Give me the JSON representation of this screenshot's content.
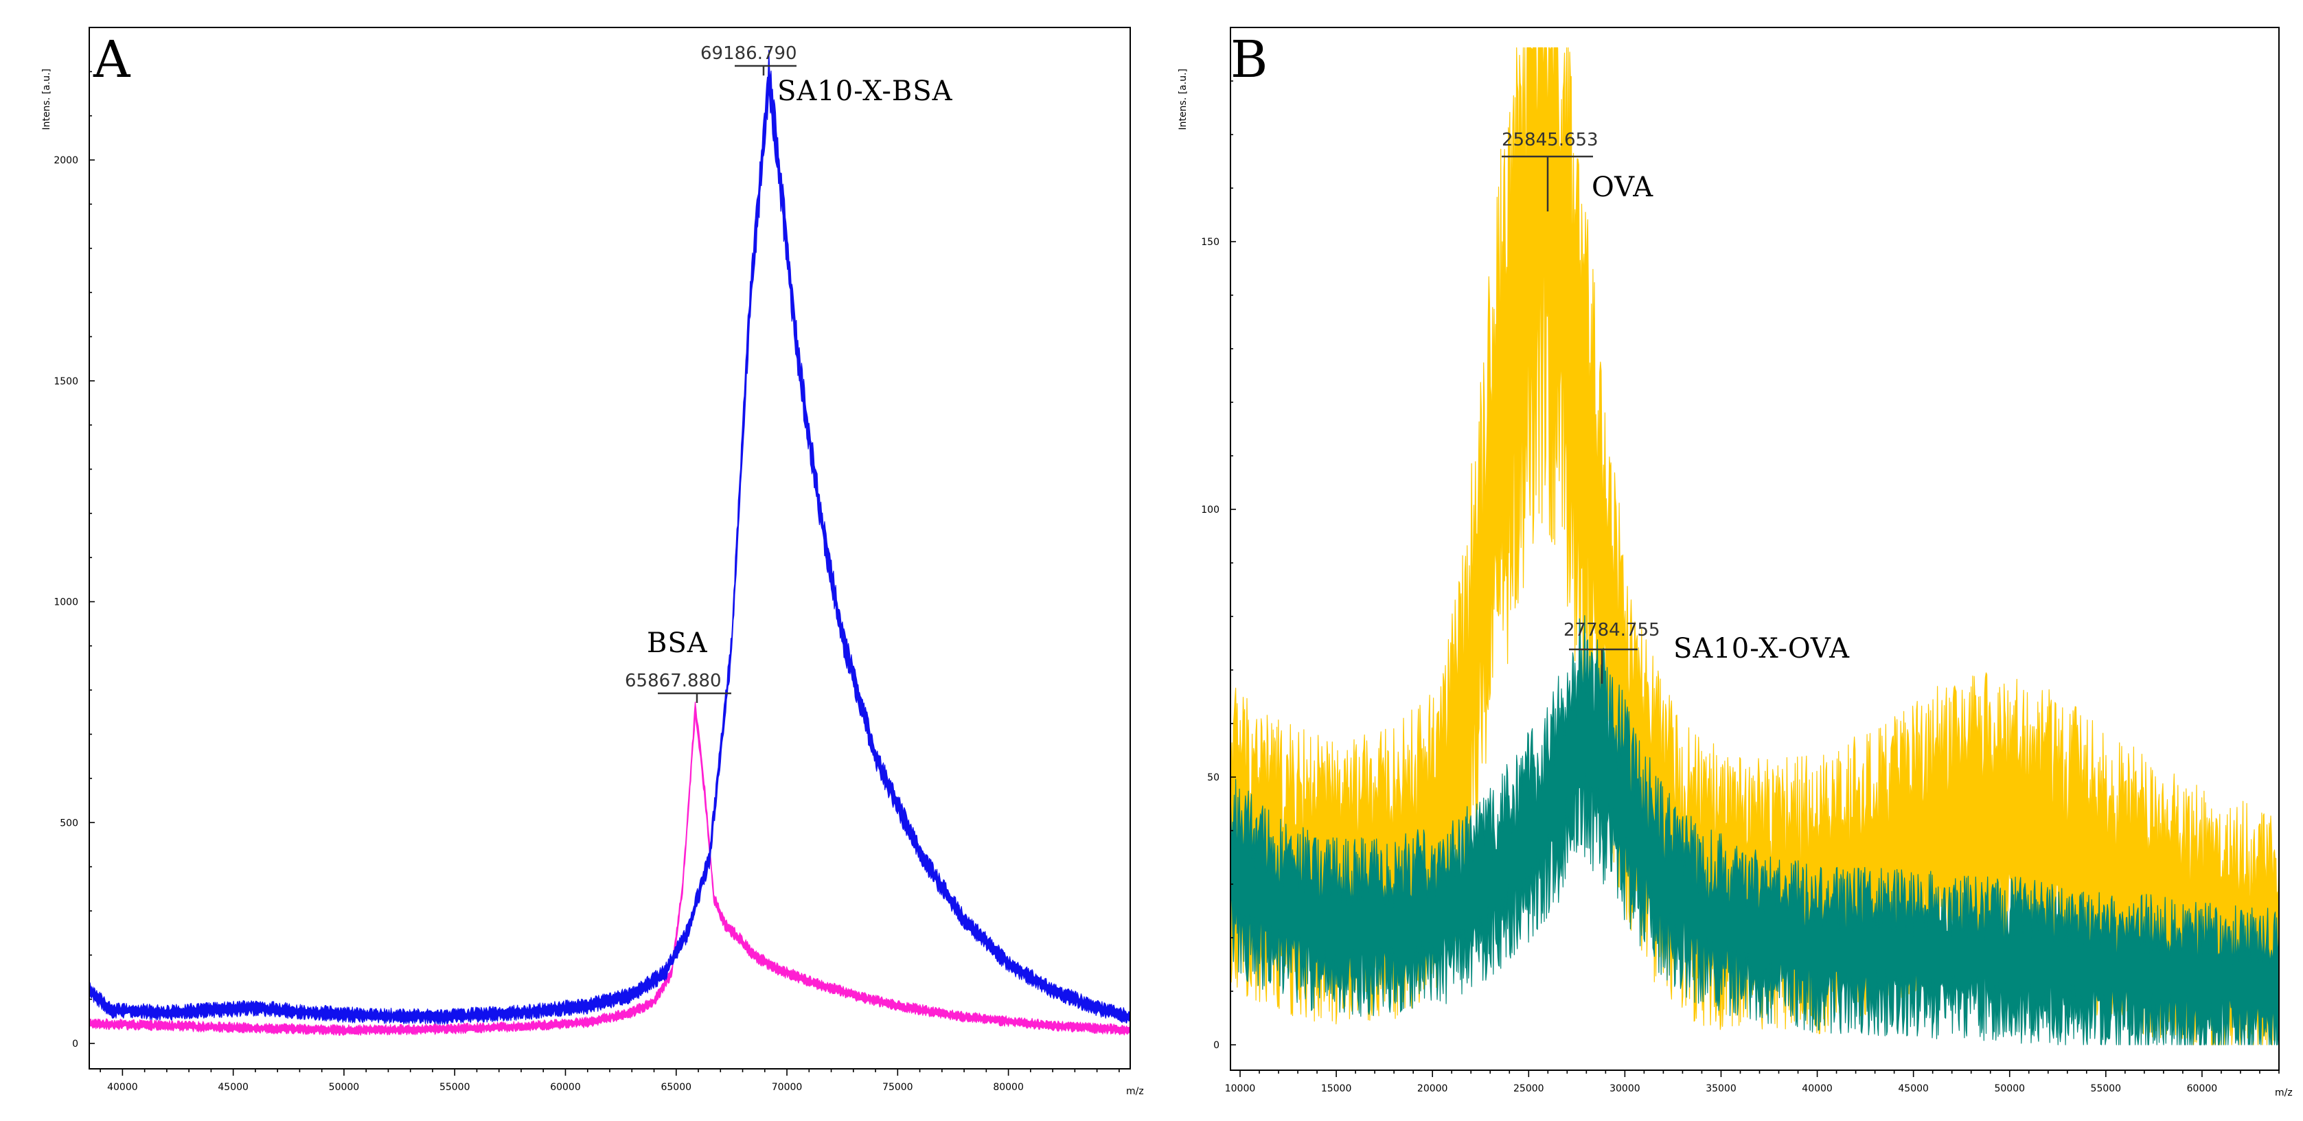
{
  "chart_data": [
    {
      "panel": "A",
      "type": "line",
      "xlabel": "m/z",
      "ylabel": "Intens. [a.u.]",
      "xlim": [
        38500,
        85500
      ],
      "ylim": [
        0,
        2300
      ],
      "xticks": [
        40000,
        45000,
        50000,
        55000,
        60000,
        65000,
        70000,
        75000,
        80000
      ],
      "yticks": [
        0,
        500,
        1000,
        1500,
        2000
      ],
      "series": [
        {
          "name": "BSA",
          "color": "#ff1fd2",
          "noise": 14,
          "points": [
            [
              38500,
              45
            ],
            [
              42000,
              40
            ],
            [
              46000,
              35
            ],
            [
              50000,
              30
            ],
            [
              54000,
              32
            ],
            [
              58000,
              38
            ],
            [
              61000,
              48
            ],
            [
              63000,
              70
            ],
            [
              64000,
              95
            ],
            [
              64800,
              160
            ],
            [
              65300,
              360
            ],
            [
              65868,
              760
            ],
            [
              66300,
              560
            ],
            [
              66700,
              330
            ],
            [
              67200,
              270
            ],
            [
              67800,
              240
            ],
            [
              68500,
              200
            ],
            [
              69500,
              170
            ],
            [
              71000,
              140
            ],
            [
              73000,
              110
            ],
            [
              75000,
              85
            ],
            [
              78000,
              60
            ],
            [
              82000,
              40
            ],
            [
              85500,
              30
            ]
          ]
        },
        {
          "name": "SA10-X-BSA",
          "color": "#1010ee",
          "noise": 20,
          "points": [
            [
              38500,
              120
            ],
            [
              39500,
              75
            ],
            [
              42000,
              70
            ],
            [
              46000,
              80
            ],
            [
              50000,
              65
            ],
            [
              54000,
              60
            ],
            [
              58000,
              70
            ],
            [
              61000,
              85
            ],
            [
              63000,
              110
            ],
            [
              64500,
              160
            ],
            [
              65500,
              250
            ],
            [
              66500,
              420
            ],
            [
              67500,
              900
            ],
            [
              68300,
              1650
            ],
            [
              69187,
              2190
            ],
            [
              69700,
              1950
            ],
            [
              70500,
              1550
            ],
            [
              71500,
              1200
            ],
            [
              72500,
              920
            ],
            [
              74000,
              650
            ],
            [
              76000,
              430
            ],
            [
              78000,
              280
            ],
            [
              80000,
              180
            ],
            [
              82000,
              120
            ],
            [
              84000,
              80
            ],
            [
              85500,
              60
            ]
          ]
        }
      ],
      "annotations": [
        {
          "text": "SA10-X-BSA",
          "peak_label": "69186.790",
          "x": 69186.79,
          "y": 2190
        },
        {
          "text": "BSA",
          "peak_label": "65867.880",
          "x": 65867.88,
          "y": 760
        }
      ]
    },
    {
      "panel": "B",
      "type": "line",
      "xlabel": "m/z",
      "ylabel": "Intens. [a.u.]",
      "xlim": [
        9500,
        64000
      ],
      "ylim": [
        0,
        190
      ],
      "xticks": [
        10000,
        15000,
        20000,
        25000,
        30000,
        35000,
        40000,
        45000,
        50000,
        55000,
        60000
      ],
      "ytick_values": [
        0,
        50,
        100,
        150
      ],
      "ytick_labels": [
        "0",
        "50",
        "100",
        "150"
      ],
      "series": [
        {
          "name": "OVA",
          "color": "#ffc800",
          "noise": 22,
          "points": [
            [
              9500,
              40
            ],
            [
              12000,
              33
            ],
            [
              15000,
              30
            ],
            [
              18000,
              32
            ],
            [
              20000,
              38
            ],
            [
              21500,
              55
            ],
            [
              22500,
              85
            ],
            [
              23500,
              115
            ],
            [
              24500,
              140
            ],
            [
              25846,
              163
            ],
            [
              26500,
              150
            ],
            [
              27500,
              120
            ],
            [
              28500,
              95
            ],
            [
              29500,
              70
            ],
            [
              30500,
              50
            ],
            [
              32000,
              38
            ],
            [
              34000,
              30
            ],
            [
              37000,
              28
            ],
            [
              40000,
              28
            ],
            [
              43000,
              32
            ],
            [
              46000,
              38
            ],
            [
              49000,
              40
            ],
            [
              52000,
              38
            ],
            [
              55000,
              32
            ],
            [
              58000,
              26
            ],
            [
              61000,
              22
            ],
            [
              64000,
              20
            ]
          ]
        },
        {
          "name": "SA10-X-OVA",
          "color": "#00877a",
          "noise": 15,
          "points": [
            [
              9500,
              32
            ],
            [
              12000,
              25
            ],
            [
              15000,
              22
            ],
            [
              18000,
              22
            ],
            [
              21000,
              25
            ],
            [
              23000,
              30
            ],
            [
              24500,
              36
            ],
            [
              26000,
              44
            ],
            [
              27785,
              58
            ],
            [
              29000,
              52
            ],
            [
              30500,
              40
            ],
            [
              32000,
              30
            ],
            [
              34000,
              24
            ],
            [
              37000,
              20
            ],
            [
              40000,
              18
            ],
            [
              45000,
              17
            ],
            [
              50000,
              16
            ],
            [
              55000,
              14
            ],
            [
              60000,
              12
            ],
            [
              64000,
              11
            ]
          ]
        }
      ],
      "annotations": [
        {
          "text": "OVA",
          "peak_label": "25845.653",
          "x": 25845.653,
          "y": 163
        },
        {
          "text": "SA10-X-OVA",
          "peak_label": "27784.755",
          "x": 27784.755,
          "y": 73
        }
      ]
    }
  ]
}
